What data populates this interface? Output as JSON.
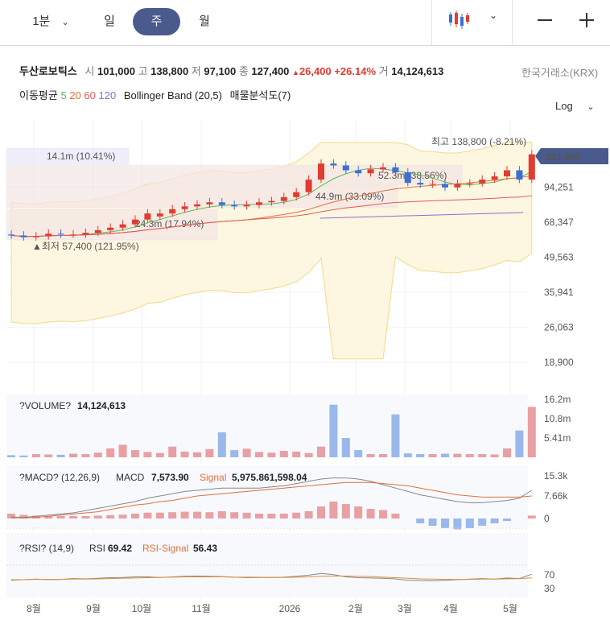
{
  "tabs": {
    "minute": "1분",
    "day": "일",
    "week": "주",
    "month": "월"
  },
  "stock": {
    "name": "두산로보틱스",
    "open_label": "시",
    "open": "101,000",
    "high_label": "고",
    "high": "138,800",
    "low_label": "저",
    "low": "97,100",
    "close_label": "종",
    "close": "127,400",
    "change": "26,400",
    "change_pct": "+26.14%",
    "volume_label": "거",
    "volume": "14,124,613",
    "exchange": "한국거래소(KRX)"
  },
  "indicators": {
    "ma_label": "이동평균",
    "ma5": "5",
    "ma20": "20",
    "ma60": "60",
    "ma120": "120",
    "bb_label": "Bollinger Band",
    "bb_params": "(20,5)",
    "vp_label": "매물분석도(7)",
    "scale": "Log"
  },
  "colors": {
    "up": "#e03c31",
    "down": "#3b6fd6",
    "accent": "#4a5a8c",
    "ma5": "#5cb85c",
    "ma20": "#e0703c",
    "ma60": "#e05a5a",
    "ma120": "#8a6fd6"
  },
  "price_chart": {
    "y_ticks": [
      "94,251",
      "68,347",
      "49,563",
      "35,941",
      "26,063",
      "18,900"
    ],
    "current_price": "127,400",
    "high_marker": "최고 138,800 (-8.21%)",
    "low_marker": "▲최저 57,400 (121.95%)",
    "volume_profile": [
      {
        "label": "14.1m (10.41%)"
      },
      {
        "label": "52.3m (38.56%)"
      },
      {
        "label": "44.9m (33.09%)"
      },
      {
        "label": "24.3m (17.94%)"
      }
    ]
  },
  "x_axis": [
    "8월",
    "9월",
    "10월",
    "11월",
    "2026",
    "2월",
    "3월",
    "4월",
    "5월"
  ],
  "volume_panel": {
    "title": "?VOLUME?",
    "value": "14,124,613",
    "y_ticks": [
      "16.2m",
      "10.8m",
      "5.41m"
    ]
  },
  "macd_panel": {
    "title": "?MACD? (12,26,9)",
    "macd_label": "MACD",
    "macd_value": "7,573.90",
    "signal_label": "Signal",
    "signal_value": "5,975.861,598.04",
    "y_ticks": [
      "15.3k",
      "7.66k",
      "0"
    ]
  },
  "rsi_panel": {
    "title": "?RSI? (14,9)",
    "rsi_label": "RSI",
    "rsi_value": "69.42",
    "signal_label": "RSI-Signal",
    "signal_value": "56.43",
    "y_ticks": [
      "70",
      "30"
    ]
  },
  "chart_data": [
    {
      "type": "candlestick",
      "series": [
        {
          "name": "주봉",
          "open": [
            61000,
            60500,
            59500,
            60000,
            61500,
            61000,
            61000,
            62000,
            63500,
            65000,
            67000,
            70000,
            72000,
            74000,
            77000,
            79000,
            80500,
            82000,
            80000,
            79000,
            80000,
            82000,
            83000,
            86000,
            90000,
            101000,
            117000,
            115000,
            110000,
            107000,
            111000,
            113000,
            108000,
            98000,
            96500,
            97000,
            94000,
            97000,
            97500,
            101000,
            104000,
            110000,
            101000
          ],
          "close": [
            60500,
            59500,
            60000,
            61500,
            61000,
            61000,
            62000,
            63500,
            65000,
            67000,
            70000,
            74000,
            74000,
            77000,
            79000,
            80500,
            82000,
            80000,
            79000,
            80000,
            82000,
            83000,
            86000,
            90000,
            101000,
            117000,
            115000,
            110000,
            107000,
            111000,
            113000,
            108000,
            98000,
            96500,
            97000,
            94000,
            97000,
            97500,
            101000,
            104000,
            110000,
            101000,
            127400
          ]
        }
      ],
      "ylim": [
        18900,
        138800
      ]
    },
    {
      "type": "bar",
      "title": "?VOLUME?",
      "values": [
        0.6,
        0.5,
        0.9,
        0.8,
        0.7,
        1.0,
        0.9,
        1.3,
        2.5,
        3.5,
        2.0,
        1.5,
        1.2,
        3.0,
        1.6,
        1.4,
        2.3,
        7.0,
        2.0,
        2.4,
        1.5,
        1.3,
        1.8,
        1.6,
        1.2,
        3.0,
        14.7,
        5.4,
        2.0,
        0.9,
        0.9,
        12.0,
        1.1,
        0.9,
        0.9,
        1.0,
        1.0,
        0.9,
        0.9,
        0.8,
        2.5,
        7.5,
        14.1
      ],
      "ylim": [
        0,
        16.2
      ]
    },
    {
      "type": "line",
      "title": "?RSI? (14,9)",
      "series": [
        {
          "name": "RSI",
          "values": [
            48,
            50,
            52,
            50,
            51,
            54,
            53,
            55,
            57,
            58,
            60,
            60,
            58,
            60,
            62,
            63,
            62,
            61,
            59,
            57,
            58,
            58,
            59,
            62,
            66,
            72,
            68,
            60,
            57,
            56,
            55,
            53,
            48,
            47,
            46,
            48,
            50,
            52,
            54,
            52,
            56,
            54,
            69.42
          ]
        },
        {
          "name": "RSI-Signal",
          "values": [
            50,
            50,
            51,
            51,
            51,
            52,
            52,
            53,
            54,
            55,
            56,
            57,
            58,
            59,
            60,
            60,
            60,
            60,
            59,
            59,
            59,
            58,
            58,
            59,
            60,
            62,
            63,
            63,
            62,
            61,
            59,
            57,
            55,
            53,
            52,
            51,
            51,
            51,
            52,
            52,
            53,
            54,
            56.43
          ]
        }
      ],
      "ylim": [
        0,
        100
      ]
    }
  ]
}
